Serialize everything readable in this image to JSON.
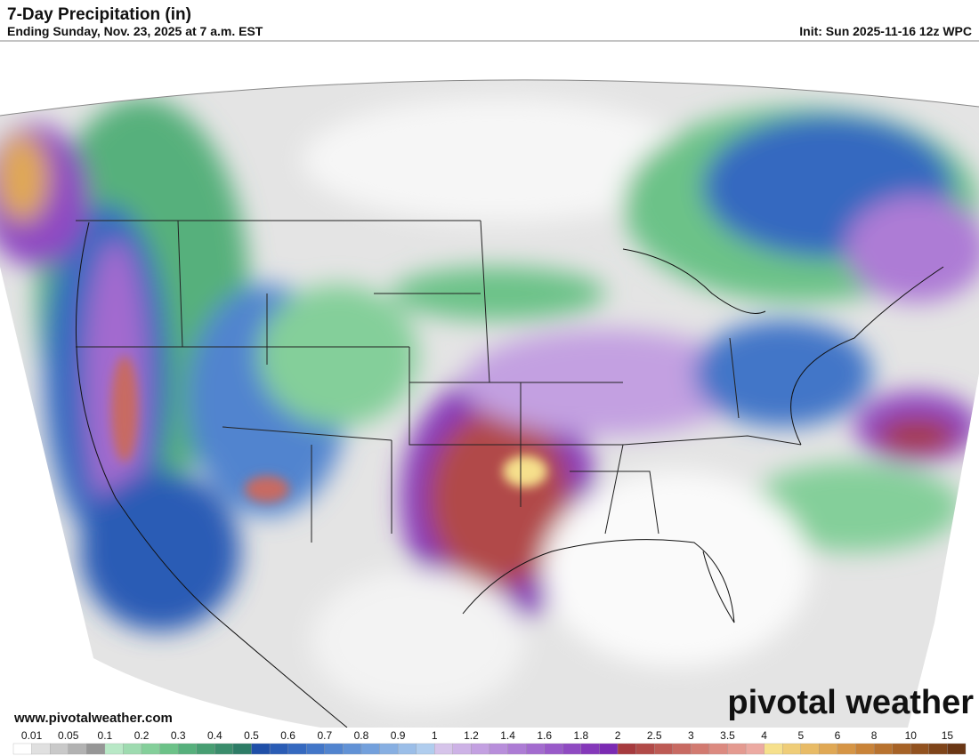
{
  "header": {
    "title": "7-Day Precipitation (in)",
    "subtitle": "Ending Sunday, Nov. 23, 2025 at 7 a.m. EST",
    "init": "Init: Sun 2025-11-16 12z WPC"
  },
  "footer": {
    "url": "www.pivotalweather.com",
    "watermark": "pivotal weather"
  },
  "colorbar": {
    "labels": [
      "0.01",
      "0.05",
      "0.1",
      "0.2",
      "0.3",
      "0.4",
      "0.5",
      "0.6",
      "0.7",
      "0.8",
      "0.9",
      "1",
      "1.2",
      "1.4",
      "1.6",
      "1.8",
      "2",
      "2.5",
      "3",
      "3.5",
      "4",
      "5",
      "6",
      "8",
      "10",
      "15"
    ],
    "colors": [
      "#ffffff",
      "#e0e0e0",
      "#c9c9c9",
      "#b2b2b2",
      "#969696",
      "#b8e8c6",
      "#9edbb0",
      "#84cf9a",
      "#6cc288",
      "#56b07c",
      "#479e72",
      "#3a8d6c",
      "#2d7c66",
      "#1f4fa8",
      "#2a5cb5",
      "#3569c0",
      "#4276c8",
      "#5184cf",
      "#6192d6",
      "#73a0dc",
      "#87afe2",
      "#9bbee8",
      "#b0cdee",
      "#d6c4ea",
      "#cdb2e6",
      "#c3a0e1",
      "#b88edb",
      "#ad7cd5",
      "#a36bcf",
      "#995ac9",
      "#8f4ac2",
      "#8538ba",
      "#7b2ab3",
      "#a63a3e",
      "#b14a48",
      "#bd5a54",
      "#c86a62",
      "#d27a70",
      "#dc8a80",
      "#e49a90",
      "#ecaaa2",
      "#f6e08c",
      "#efcd78",
      "#e8bb66",
      "#e0a854",
      "#d69545",
      "#c98338",
      "#b8722e",
      "#a66226",
      "#92521f",
      "#7e4419",
      "#6a3614"
    ]
  }
}
